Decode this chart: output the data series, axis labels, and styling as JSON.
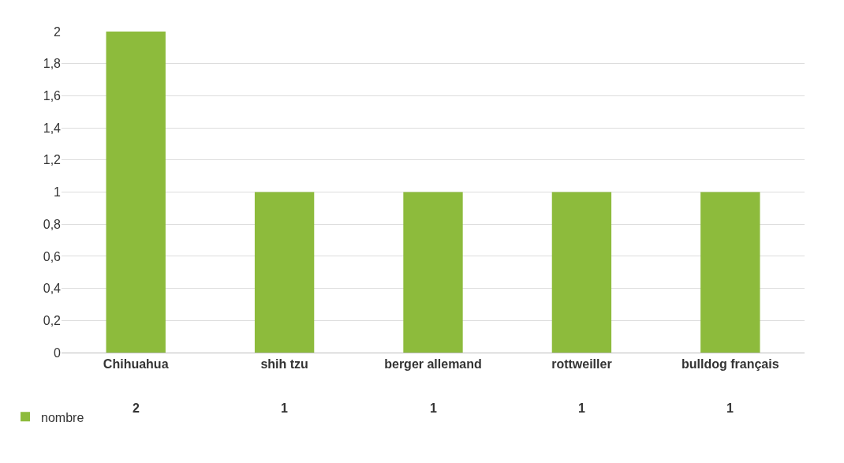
{
  "chart_data": {
    "type": "bar",
    "categories": [
      "Chihuahua",
      "shih tzu",
      "berger allemand",
      "rottweiller",
      "bulldog français"
    ],
    "series": [
      {
        "name": "nombre",
        "color": "#8dbb3c",
        "values": [
          2,
          1,
          1,
          1,
          1
        ]
      }
    ],
    "ylim": [
      0,
      2
    ],
    "yticks": [
      0,
      {
        "value": 0.2,
        "label": "0,2"
      },
      {
        "value": 0.4,
        "label": "0,4"
      },
      {
        "value": 0.6,
        "label": "0,6"
      },
      {
        "value": 0.8,
        "label": "0,8"
      },
      1,
      {
        "value": 1.2,
        "label": "1,2"
      },
      {
        "value": 1.4,
        "label": "1,4"
      },
      {
        "value": 1.6,
        "label": "1,6"
      },
      {
        "value": 1.8,
        "label": "1,8"
      },
      2
    ],
    "grid": "y",
    "legend": "bottom left",
    "data_labels": true
  }
}
